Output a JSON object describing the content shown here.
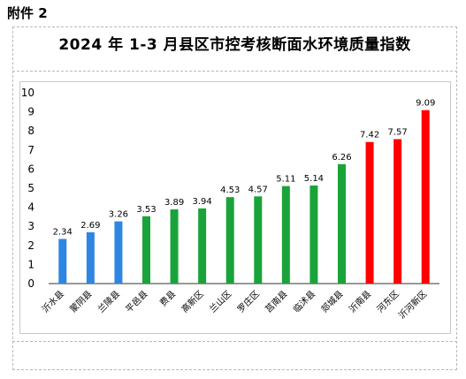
{
  "header": {
    "attachment": "附件 2"
  },
  "chart_data": {
    "type": "bar",
    "title": "2024 年 1-3 月县区市控考核断面水环境质量指数",
    "categories": [
      "沂水县",
      "蒙阴县",
      "兰陵县",
      "平邑县",
      "费县",
      "高新区",
      "兰山区",
      "罗庄区",
      "莒南县",
      "临沭县",
      "郯城县",
      "沂南县",
      "河东区",
      "沂河新区"
    ],
    "values": [
      2.34,
      2.69,
      3.26,
      3.53,
      3.89,
      3.94,
      4.53,
      4.57,
      5.11,
      5.14,
      6.26,
      7.42,
      7.57,
      9.09
    ],
    "value_labels": [
      "2.34",
      "2.69",
      "3.26",
      "3.53",
      "3.89",
      "3.94",
      "4.53",
      "4.57",
      "5.11",
      "5.14",
      "6.26",
      "7.42",
      "7.57",
      "9.09"
    ],
    "colors": [
      "#2e86e0",
      "#2e86e0",
      "#2e86e0",
      "#1aa33a",
      "#1aa33a",
      "#1aa33a",
      "#1aa33a",
      "#1aa33a",
      "#1aa33a",
      "#1aa33a",
      "#1aa33a",
      "#ff0000",
      "#ff0000",
      "#ff0000"
    ],
    "ylim": [
      0,
      10
    ],
    "yticks": [
      "0",
      "1",
      "2",
      "3",
      "4",
      "5",
      "6",
      "7",
      "8",
      "9",
      "10"
    ],
    "grid": false,
    "legend": "none",
    "xlabel": "",
    "ylabel": ""
  }
}
